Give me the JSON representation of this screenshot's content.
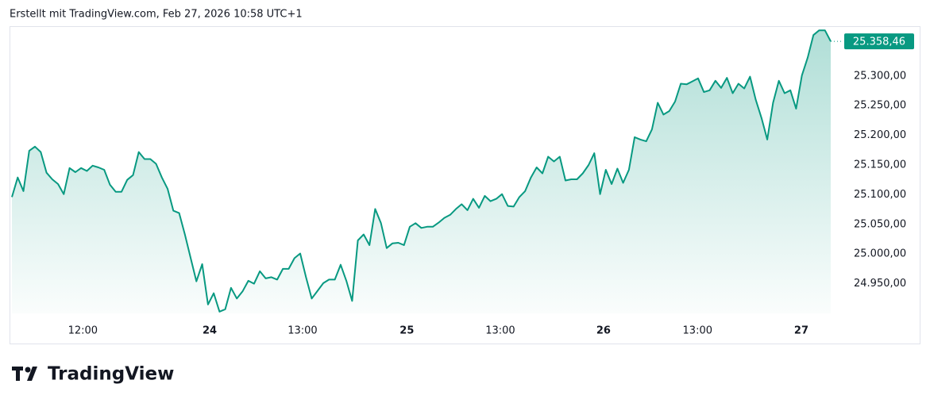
{
  "header": {
    "text": "Erstellt mit TradingView.com, Feb 27, 2026 10:58 UTC+1"
  },
  "chart_data": {
    "type": "area",
    "color": "#089981",
    "values": [
      25096,
      25129,
      25106,
      25174,
      25181,
      25172,
      25137,
      25126,
      25118,
      25101,
      25145,
      25138,
      25145,
      25140,
      25149,
      25146,
      25142,
      25117,
      25105,
      25105,
      25125,
      25133,
      25172,
      25160,
      25160,
      25152,
      25129,
      25110,
      25073,
      25069,
      25033,
      24993,
      24954,
      24983,
      24915,
      24934,
      24903,
      24907,
      24943,
      24925,
      24937,
      24955,
      24950,
      24971,
      24959,
      24961,
      24957,
      24975,
      24975,
      24993,
      25001,
      24961,
      24925,
      24938,
      24951,
      24957,
      24957,
      24982,
      24955,
      24921,
      25023,
      25033,
      25015,
      25076,
      25052,
      25010,
      25018,
      25019,
      25015,
      25046,
      25052,
      25044,
      25046,
      25046,
      25053,
      25061,
      25066,
      25076,
      25084,
      25074,
      25093,
      25078,
      25098,
      25089,
      25093,
      25101,
      25081,
      25080,
      25096,
      25106,
      25129,
      25146,
      25136,
      25164,
      25156,
      25164,
      25124,
      25126,
      25126,
      25136,
      25150,
      25170,
      25101,
      25142,
      25118,
      25144,
      25120,
      25142,
      25197,
      25193,
      25190,
      25210,
      25255,
      25235,
      25241,
      25257,
      25287,
      25286,
      25291,
      25296,
      25273,
      25276,
      25292,
      25280,
      25297,
      25271,
      25287,
      25279,
      25299,
      25260,
      25229,
      25193,
      25255,
      25292,
      25271,
      25276,
      25245,
      25301,
      25331,
      25369,
      25377,
      25377,
      25358.46
    ],
    "last_value_label": "25.358,46",
    "xlim": [
      0,
      142
    ],
    "xticks": [
      {
        "value": 12.3,
        "label": "12:00"
      },
      {
        "value": 34.3,
        "label": "24"
      },
      {
        "value": 50.4,
        "label": "13:00"
      },
      {
        "value": 68.5,
        "label": "25"
      },
      {
        "value": 84.7,
        "label": "13:00"
      },
      {
        "value": 102.6,
        "label": "26"
      },
      {
        "value": 118.9,
        "label": "13:00"
      },
      {
        "value": 136.9,
        "label": "27"
      }
    ],
    "ylim": [
      24900,
      25384
    ],
    "yticks": [
      {
        "value": 24950,
        "label": "24.950,00"
      },
      {
        "value": 25000,
        "label": "25.000,00"
      },
      {
        "value": 25050,
        "label": "25.050,00"
      },
      {
        "value": 25100,
        "label": "25.100,00"
      },
      {
        "value": 25150,
        "label": "25.150,00"
      },
      {
        "value": 25200,
        "label": "25.200,00"
      },
      {
        "value": 25250,
        "label": "25.250,00"
      },
      {
        "value": 25300,
        "label": "25.300,00"
      }
    ]
  },
  "footer": {
    "logo_text": "TradingView"
  }
}
